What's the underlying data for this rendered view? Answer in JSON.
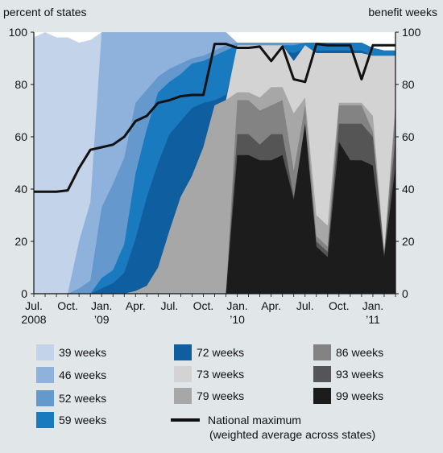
{
  "chart_data": {
    "type": "area",
    "y_left_label": "percent of states",
    "y_right_label": "benefit weeks",
    "ylim": [
      0,
      100
    ],
    "y_ticks": [
      0,
      20,
      40,
      60,
      80,
      100
    ],
    "x_range": [
      "2008-07",
      "2011-03"
    ],
    "x_ticks": [
      {
        "month": "2008-07",
        "label1": "Jul.",
        "label2": "2008"
      },
      {
        "month": "2008-10",
        "label1": "Oct.",
        "label2": ""
      },
      {
        "month": "2009-01",
        "label1": "Jan.",
        "label2": "’09"
      },
      {
        "month": "2009-04",
        "label1": "Apr.",
        "label2": ""
      },
      {
        "month": "2009-07",
        "label1": "Jul.",
        "label2": ""
      },
      {
        "month": "2009-10",
        "label1": "Oct.",
        "label2": ""
      },
      {
        "month": "2010-01",
        "label1": "Jan.",
        "label2": "’10"
      },
      {
        "month": "2010-04",
        "label1": "Apr.",
        "label2": ""
      },
      {
        "month": "2010-07",
        "label1": "Jul.",
        "label2": ""
      },
      {
        "month": "2010-10",
        "label1": "Oct.",
        "label2": ""
      },
      {
        "month": "2011-01",
        "label1": "Jan.",
        "label2": "’11"
      }
    ],
    "months": [
      "2008-07",
      "2008-08",
      "2008-09",
      "2008-10",
      "2008-11",
      "2008-12",
      "2009-01",
      "2009-02",
      "2009-03",
      "2009-04",
      "2009-05",
      "2009-06",
      "2009-07",
      "2009-08",
      "2009-09",
      "2009-10",
      "2009-11",
      "2009-12",
      "2010-01",
      "2010-02",
      "2010-03",
      "2010-04",
      "2010-05",
      "2010-06",
      "2010-07",
      "2010-08",
      "2010-09",
      "2010-10",
      "2010-11",
      "2010-12",
      "2011-01",
      "2011-02",
      "2011-03"
    ],
    "series_cumulative": [
      {
        "name": "99 weeks",
        "color": "#1c1c1c",
        "values": [
          0,
          0,
          0,
          0,
          0,
          0,
          0,
          0,
          0,
          0,
          0,
          0,
          0,
          0,
          0,
          0,
          0,
          0,
          53,
          53,
          51,
          51,
          53,
          36,
          65,
          18,
          14,
          58,
          51,
          51,
          49,
          14,
          49
        ]
      },
      {
        "name": "93 weeks",
        "color": "#555555",
        "values": [
          0,
          0,
          0,
          0,
          0,
          0,
          0,
          0,
          0,
          0,
          0,
          0,
          0,
          0,
          0,
          0,
          0,
          0,
          61,
          61,
          57,
          61,
          61,
          37,
          65,
          20,
          16,
          65,
          65,
          65,
          60,
          15,
          60
        ]
      },
      {
        "name": "86 weeks",
        "color": "#838383",
        "values": [
          0,
          0,
          0,
          0,
          0,
          0,
          0,
          0,
          0,
          0,
          0,
          0,
          0,
          0,
          0,
          0,
          0,
          0,
          74,
          74,
          70,
          72,
          74,
          47,
          72,
          22,
          18,
          72,
          72,
          72,
          62,
          16,
          70
        ]
      },
      {
        "name": "79 weeks",
        "color": "#a7a7a7",
        "values": [
          0,
          0,
          0,
          0,
          0,
          0,
          0,
          0,
          0,
          1,
          3,
          10,
          24,
          37,
          45,
          56,
          72,
          74,
          77,
          77,
          75,
          79,
          79,
          69,
          75,
          30,
          26,
          73,
          73,
          73,
          68,
          16,
          73
        ]
      },
      {
        "name": "73 weeks",
        "color": "#d3d3d3",
        "values": [
          0,
          0,
          0,
          0,
          0,
          0,
          0,
          0,
          0,
          1,
          3,
          10,
          24,
          37,
          45,
          56,
          72,
          74,
          95,
          95,
          95,
          95,
          95,
          89,
          95,
          92,
          92,
          92,
          92,
          92,
          91,
          91,
          91
        ]
      },
      {
        "name": "72 weeks",
        "color": "#0f5fa0",
        "values": [
          0,
          0,
          0,
          0,
          0,
          0,
          2,
          4,
          8,
          21,
          37,
          50,
          61,
          66,
          71,
          73,
          74,
          76,
          92,
          92,
          93,
          93,
          93,
          92,
          94,
          93,
          93,
          93,
          93,
          93,
          91,
          91,
          91
        ]
      },
      {
        "name": "59 weeks",
        "color": "#1a7ac0",
        "values": [
          0,
          0,
          0,
          0,
          0,
          0,
          6,
          9,
          19,
          46,
          63,
          77,
          81,
          84,
          88,
          89,
          91,
          93,
          95,
          95,
          95,
          95,
          95,
          95,
          96,
          96,
          96,
          96,
          96,
          96,
          94,
          93,
          93
        ]
      },
      {
        "name": "52 weeks",
        "color": "#6598cc",
        "values": [
          0,
          0,
          0,
          0,
          2,
          5,
          33,
          42,
          52,
          73,
          78,
          83,
          86,
          88,
          90,
          91,
          93,
          95,
          96,
          96,
          96,
          96,
          96,
          96,
          96,
          96,
          96,
          96,
          96,
          96,
          94,
          93,
          93
        ]
      },
      {
        "name": "46 weeks",
        "color": "#8fb2dc",
        "values": [
          0,
          0,
          0,
          0,
          20,
          35,
          100,
          100,
          100,
          100,
          100,
          100,
          100,
          100,
          100,
          100,
          100,
          100,
          96,
          96,
          96,
          96,
          96,
          96,
          96,
          96,
          96,
          96,
          96,
          96,
          94,
          93,
          93
        ]
      },
      {
        "name": "39 weeks",
        "color": "#c2d3ea",
        "values": [
          98,
          100,
          98,
          98,
          96,
          97,
          100,
          100,
          100,
          100,
          100,
          100,
          100,
          100,
          100,
          100,
          100,
          100,
          96,
          96,
          96,
          96,
          96,
          96,
          96,
          96,
          96,
          96,
          96,
          96,
          94,
          93,
          93
        ]
      }
    ],
    "national_maximum": {
      "name": "National maximum",
      "note": "(weighted average across states)",
      "color": "#111111",
      "values": [
        39,
        39,
        39,
        39.5,
        48,
        55,
        56,
        57,
        60,
        66,
        68,
        73,
        74,
        75.5,
        76,
        76,
        95.5,
        95.5,
        94,
        94,
        94.5,
        89,
        94.5,
        82,
        81,
        95.5,
        95,
        95,
        95,
        82,
        95,
        95,
        95
      ]
    }
  },
  "legend": {
    "items": [
      {
        "label": "39 weeks",
        "color": "#c2d3ea"
      },
      {
        "label": "46 weeks",
        "color": "#8fb2dc"
      },
      {
        "label": "52 weeks",
        "color": "#6598cc"
      },
      {
        "label": "59 weeks",
        "color": "#1a7ac0"
      },
      {
        "label": "72 weeks",
        "color": "#0f5fa0"
      },
      {
        "label": "73 weeks",
        "color": "#d3d3d3"
      },
      {
        "label": "79 weeks",
        "color": "#a7a7a7"
      },
      {
        "label": "86 weeks",
        "color": "#838383"
      },
      {
        "label": "93 weeks",
        "color": "#555555"
      },
      {
        "label": "99 weeks",
        "color": "#1c1c1c"
      }
    ],
    "line_label": "National maximum",
    "line_note": "(weighted average across states)"
  }
}
